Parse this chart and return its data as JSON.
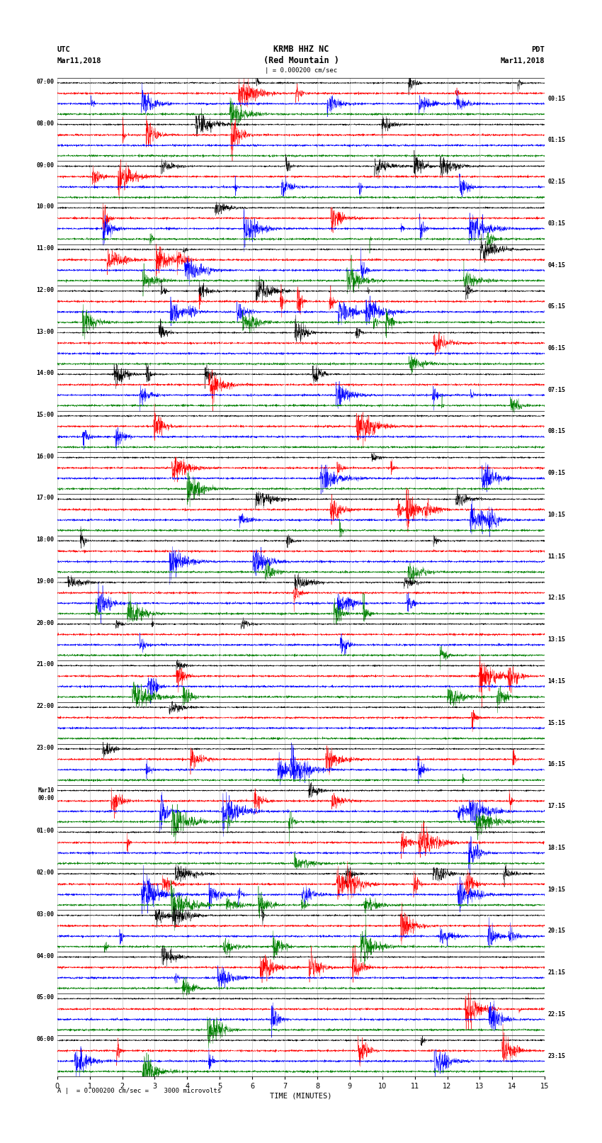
{
  "title_line1": "KRMB HHZ NC",
  "title_line2": "(Red Mountain )",
  "scale_label": "| = 0.000200 cm/sec",
  "bottom_label": "A |  = 0.000200 cm/sec =    3000 microvolts",
  "xlabel": "TIME (MINUTES)",
  "left_header_line1": "UTC",
  "left_header_line2": "Mar11,2018",
  "right_header_line1": "PDT",
  "right_header_line2": "Mar11,2018",
  "left_times": [
    "07:00",
    "08:00",
    "09:00",
    "10:00",
    "11:00",
    "12:00",
    "13:00",
    "14:00",
    "15:00",
    "16:00",
    "17:00",
    "18:00",
    "19:00",
    "20:00",
    "21:00",
    "22:00",
    "23:00",
    "Mar10\n00:00",
    "01:00",
    "02:00",
    "03:00",
    "04:00",
    "05:00",
    "06:00"
  ],
  "right_times": [
    "00:15",
    "01:15",
    "02:15",
    "03:15",
    "04:15",
    "05:15",
    "06:15",
    "07:15",
    "08:15",
    "09:15",
    "10:15",
    "11:15",
    "12:15",
    "13:15",
    "14:15",
    "15:15",
    "16:15",
    "17:15",
    "18:15",
    "19:15",
    "20:15",
    "21:15",
    "22:15",
    "23:15"
  ],
  "num_rows": 24,
  "traces_per_row": 4,
  "colors": [
    "black",
    "red",
    "blue",
    "green"
  ],
  "fig_width": 8.5,
  "fig_height": 16.13,
  "bg_color": "white",
  "minutes_per_row": 15,
  "xticks": [
    0,
    1,
    2,
    3,
    4,
    5,
    6,
    7,
    8,
    9,
    10,
    11,
    12,
    13,
    14,
    15
  ],
  "samples_per_minute": 200,
  "trace_amp": 0.38,
  "lw": 0.3
}
